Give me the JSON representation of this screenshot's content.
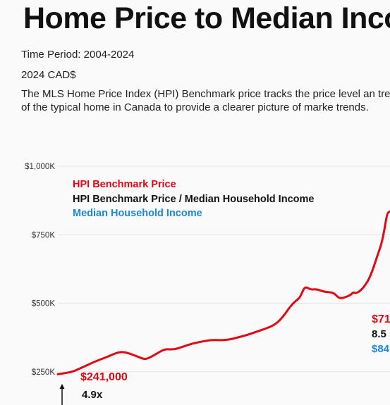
{
  "header": {
    "title": "Home Price to Median Inco",
    "time_period": "Time Period: 2004-2024",
    "currency_note": "2024 CAD$",
    "description": "The MLS Home Price Index (HPI) Benchmark price tracks the price level an trends of the typical home in Canada to provide a clearer picture of marke trends."
  },
  "colors": {
    "price": "#e30613",
    "ratio": "#111111",
    "income": "#1b87d6",
    "grid": "#e4e4e4",
    "axis_text": "#333333"
  },
  "chart_data": {
    "type": "line",
    "title": "",
    "xlabel": "",
    "ylabel": "",
    "ylim": [
      0,
      1000000
    ],
    "y_ticks": [
      {
        "value": 250000,
        "label": "$250K"
      },
      {
        "value": 500000,
        "label": "$500K"
      },
      {
        "value": 750000,
        "label": "$750K"
      },
      {
        "value": 1000000,
        "label": "$1,000K"
      }
    ],
    "legend": {
      "placement": "top-left",
      "entries": [
        {
          "label": "HPI Benchmark  Price",
          "color": "#e30613"
        },
        {
          "label": "HPI Benchmark Price / Median Household Income",
          "color": "#111111"
        },
        {
          "label": "Median Household Income",
          "color": "#1b87d6"
        }
      ]
    },
    "series": [
      {
        "name": "HPI Benchmark  Price",
        "x": [
          2004.0,
          2004.4,
          2004.8,
          2005.4,
          2006.0,
          2006.6,
          2007.0,
          2007.3,
          2007.6,
          2008.0,
          2008.4,
          2008.7,
          2009.0,
          2009.4,
          2009.8,
          2010.2,
          2010.5,
          2010.8,
          2011.3,
          2011.8,
          2012.3,
          2012.8,
          2013.3,
          2013.8,
          2014.3,
          2014.8,
          2015.3,
          2015.8,
          2016.2,
          2016.5,
          2016.8,
          2017.0,
          2017.1,
          2017.2,
          2017.4,
          2017.7,
          2018.0,
          2018.4,
          2018.8,
          2019.0,
          2019.2,
          2019.4,
          2019.7,
          2019.9,
          2020.0,
          2020.2,
          2020.5,
          2020.8,
          2021.0,
          2021.2,
          2021.4,
          2021.55,
          2021.7,
          2021.85,
          2022.0
        ],
        "values": [
          241000,
          245000,
          250000,
          268000,
          287000,
          302000,
          314000,
          321000,
          322000,
          314000,
          303000,
          295000,
          302000,
          318000,
          333000,
          331000,
          335000,
          342000,
          353000,
          360000,
          366000,
          365000,
          367000,
          376000,
          385000,
          397000,
          408000,
          423000,
          450000,
          480000,
          503000,
          514000,
          520000,
          534000,
          562000,
          549000,
          552000,
          542000,
          540000,
          535000,
          520000,
          518000,
          525000,
          532000,
          540000,
          536000,
          552000,
          580000,
          610000,
          650000,
          690000,
          720000,
          770000,
          830000,
          835000
        ]
      }
    ],
    "annotations": {
      "start_price": "$241,000",
      "start_ratio": "4.9x",
      "end_price": "$71",
      "end_ratio": "8.5",
      "end_income": "$84"
    }
  }
}
